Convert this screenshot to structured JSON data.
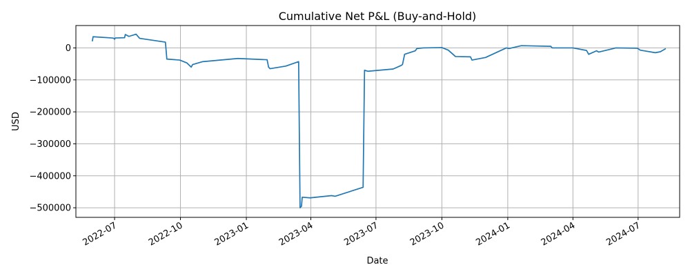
{
  "chart_data": {
    "type": "line",
    "title": "Cumulative Net P&L (Buy-and-Hold)",
    "xlabel": "Date",
    "ylabel": "USD",
    "x_axis_type": "date",
    "xlim": [
      "2022-05-08",
      "2024-08-28"
    ],
    "ylim": [
      -530000,
      70000
    ],
    "x_ticks": [
      {
        "date": "2022-07-01",
        "label": "2022-07"
      },
      {
        "date": "2022-10-01",
        "label": "2022-10"
      },
      {
        "date": "2023-01-01",
        "label": "2023-01"
      },
      {
        "date": "2023-04-01",
        "label": "2023-04"
      },
      {
        "date": "2023-07-01",
        "label": "2023-07"
      },
      {
        "date": "2023-10-01",
        "label": "2023-10"
      },
      {
        "date": "2024-01-01",
        "label": "2024-01"
      },
      {
        "date": "2024-04-01",
        "label": "2024-04"
      },
      {
        "date": "2024-07-01",
        "label": "2024-07"
      }
    ],
    "y_ticks": [
      {
        "value": 0,
        "label": "0"
      },
      {
        "value": -100000,
        "label": "−100000"
      },
      {
        "value": -200000,
        "label": "−200000"
      },
      {
        "value": -300000,
        "label": "−300000"
      },
      {
        "value": -400000,
        "label": "−400000"
      },
      {
        "value": -500000,
        "label": "−500000"
      }
    ],
    "grid": true,
    "series": [
      {
        "color": "#1f77b4",
        "points": [
          [
            "2022-05-31",
            22000
          ],
          [
            "2022-06-01",
            35000
          ],
          [
            "2022-06-28",
            31000
          ],
          [
            "2022-06-30",
            30000
          ],
          [
            "2022-07-01",
            27000
          ],
          [
            "2022-07-02",
            31000
          ],
          [
            "2022-07-15",
            32000
          ],
          [
            "2022-07-16",
            42000
          ],
          [
            "2022-07-21",
            36000
          ],
          [
            "2022-07-31",
            43000
          ],
          [
            "2022-08-05",
            30000
          ],
          [
            "2022-09-10",
            18000
          ],
          [
            "2022-09-12",
            -35000
          ],
          [
            "2022-09-30",
            -38000
          ],
          [
            "2022-10-10",
            -47000
          ],
          [
            "2022-10-16",
            -60000
          ],
          [
            "2022-10-18",
            -52000
          ],
          [
            "2022-11-01",
            -43000
          ],
          [
            "2022-12-20",
            -33000
          ],
          [
            "2023-01-30",
            -37000
          ],
          [
            "2023-02-01",
            -60000
          ],
          [
            "2023-02-03",
            -65000
          ],
          [
            "2023-02-25",
            -57000
          ],
          [
            "2023-03-15",
            -43000
          ],
          [
            "2023-03-17",
            -500000
          ],
          [
            "2023-03-19",
            -495000
          ],
          [
            "2023-03-20",
            -467000
          ],
          [
            "2023-03-31",
            -469000
          ],
          [
            "2023-04-30",
            -462000
          ],
          [
            "2023-05-05",
            -464000
          ],
          [
            "2023-06-13",
            -436000
          ],
          [
            "2023-06-15",
            -70000
          ],
          [
            "2023-06-20",
            -73000
          ],
          [
            "2023-07-25",
            -66000
          ],
          [
            "2023-08-05",
            -55000
          ],
          [
            "2023-08-07",
            -52000
          ],
          [
            "2023-08-10",
            -20000
          ],
          [
            "2023-08-25",
            -9000
          ],
          [
            "2023-08-27",
            -2000
          ],
          [
            "2023-09-05",
            0
          ],
          [
            "2023-10-01",
            1000
          ],
          [
            "2023-10-10",
            -7000
          ],
          [
            "2023-10-20",
            -27000
          ],
          [
            "2023-11-10",
            -28000
          ],
          [
            "2023-11-12",
            -38000
          ],
          [
            "2023-12-01",
            -30000
          ],
          [
            "2023-12-30",
            0
          ],
          [
            "2024-01-03",
            -2000
          ],
          [
            "2024-01-20",
            7000
          ],
          [
            "2024-03-01",
            5000
          ],
          [
            "2024-03-03",
            0
          ],
          [
            "2024-04-01",
            0
          ],
          [
            "2024-04-20",
            -8000
          ],
          [
            "2024-04-23",
            -20000
          ],
          [
            "2024-05-04",
            -9000
          ],
          [
            "2024-05-07",
            -13000
          ],
          [
            "2024-05-31",
            0
          ],
          [
            "2024-06-30",
            -1000
          ],
          [
            "2024-07-04",
            -7000
          ],
          [
            "2024-07-25",
            -15000
          ],
          [
            "2024-08-01",
            -12000
          ],
          [
            "2024-08-08",
            -3000
          ]
        ]
      }
    ]
  }
}
